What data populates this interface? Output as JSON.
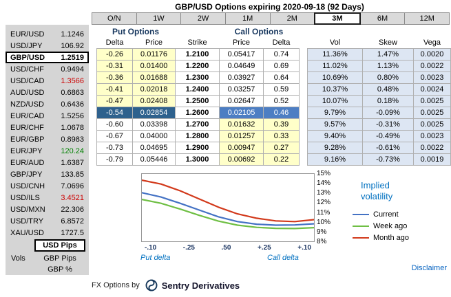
{
  "title": "GBP/USD Options expiring 2020-09-18 (92 Days)",
  "tabs": {
    "items": [
      "O/N",
      "1W",
      "2W",
      "1M",
      "2M",
      "3M",
      "6M",
      "12M"
    ],
    "selected": "3M"
  },
  "sidebar": {
    "pairs": [
      {
        "pair": "EUR/USD",
        "rate": "1.1246",
        "color": "black",
        "selected": false
      },
      {
        "pair": "USD/JPY",
        "rate": "106.92",
        "color": "black",
        "selected": false
      },
      {
        "pair": "GBP/USD",
        "rate": "1.2519",
        "color": "black",
        "selected": true
      },
      {
        "pair": "USD/CHF",
        "rate": "0.9494",
        "color": "black",
        "selected": false
      },
      {
        "pair": "USD/CAD",
        "rate": "1.3566",
        "color": "red",
        "selected": false
      },
      {
        "pair": "AUD/USD",
        "rate": "0.6863",
        "color": "black",
        "selected": false
      },
      {
        "pair": "NZD/USD",
        "rate": "0.6436",
        "color": "black",
        "selected": false
      },
      {
        "pair": "EUR/CAD",
        "rate": "1.5256",
        "color": "black",
        "selected": false
      },
      {
        "pair": "EUR/CHF",
        "rate": "1.0678",
        "color": "black",
        "selected": false
      },
      {
        "pair": "EUR/GBP",
        "rate": "0.8983",
        "color": "black",
        "selected": false
      },
      {
        "pair": "EUR/JPY",
        "rate": "120.24",
        "color": "green",
        "selected": false
      },
      {
        "pair": "EUR/AUD",
        "rate": "1.6387",
        "color": "black",
        "selected": false
      },
      {
        "pair": "GBP/JPY",
        "rate": "133.85",
        "color": "black",
        "selected": false
      },
      {
        "pair": "USD/CNH",
        "rate": "7.0696",
        "color": "black",
        "selected": false
      },
      {
        "pair": "USD/ILS",
        "rate": "3.4521",
        "color": "red",
        "selected": false
      },
      {
        "pair": "USD/MXN",
        "rate": "22.306",
        "color": "black",
        "selected": false
      },
      {
        "pair": "USD/TRY",
        "rate": "6.8572",
        "color": "black",
        "selected": false
      },
      {
        "pair": "XAU/USD",
        "rate": "1727.5",
        "color": "black",
        "selected": false
      }
    ],
    "footer": {
      "vols_label": "Vols",
      "modes": [
        "USD Pips",
        "GBP Pips",
        "GBP %"
      ],
      "selected_mode": "USD Pips"
    }
  },
  "table": {
    "put_header": "Put Options",
    "call_header": "Call Options",
    "columns": [
      "Delta",
      "Price",
      "Strike",
      "Price",
      "Delta",
      "Vol",
      "Skew",
      "Vega"
    ],
    "rows": [
      {
        "put_delta": "-0.26",
        "put_price": "0.01176",
        "strike": "1.2100",
        "call_price": "0.05417",
        "call_delta": "0.74",
        "vol": "11.36%",
        "skew": "1.47%",
        "vega": "0.0020",
        "atm": false
      },
      {
        "put_delta": "-0.31",
        "put_price": "0.01400",
        "strike": "1.2200",
        "call_price": "0.04649",
        "call_delta": "0.69",
        "vol": "11.02%",
        "skew": "1.13%",
        "vega": "0.0022",
        "atm": false
      },
      {
        "put_delta": "-0.36",
        "put_price": "0.01688",
        "strike": "1.2300",
        "call_price": "0.03927",
        "call_delta": "0.64",
        "vol": "10.69%",
        "skew": "0.80%",
        "vega": "0.0023",
        "atm": false
      },
      {
        "put_delta": "-0.41",
        "put_price": "0.02018",
        "strike": "1.2400",
        "call_price": "0.03257",
        "call_delta": "0.59",
        "vol": "10.37%",
        "skew": "0.48%",
        "vega": "0.0024",
        "atm": false
      },
      {
        "put_delta": "-0.47",
        "put_price": "0.02408",
        "strike": "1.2500",
        "call_price": "0.02647",
        "call_delta": "0.52",
        "vol": "10.07%",
        "skew": "0.18%",
        "vega": "0.0025",
        "atm": false
      },
      {
        "put_delta": "-0.54",
        "put_price": "0.02854",
        "strike": "1.2600",
        "call_price": "0.02105",
        "call_delta": "0.46",
        "vol": "9.79%",
        "skew": "-0.09%",
        "vega": "0.0025",
        "atm": true
      },
      {
        "put_delta": "-0.60",
        "put_price": "0.03398",
        "strike": "1.2700",
        "call_price": "0.01632",
        "call_delta": "0.39",
        "vol": "9.57%",
        "skew": "-0.31%",
        "vega": "0.0025",
        "atm": false
      },
      {
        "put_delta": "-0.67",
        "put_price": "0.04000",
        "strike": "1.2800",
        "call_price": "0.01257",
        "call_delta": "0.33",
        "vol": "9.40%",
        "skew": "-0.49%",
        "vega": "0.0023",
        "atm": false
      },
      {
        "put_delta": "-0.73",
        "put_price": "0.04695",
        "strike": "1.2900",
        "call_price": "0.00947",
        "call_delta": "0.27",
        "vol": "9.28%",
        "skew": "-0.61%",
        "vega": "0.0022",
        "atm": false
      },
      {
        "put_delta": "-0.79",
        "put_price": "0.05446",
        "strike": "1.3000",
        "call_price": "0.00692",
        "call_delta": "0.22",
        "vol": "9.16%",
        "skew": "-0.73%",
        "vega": "0.0019",
        "atm": false
      }
    ]
  },
  "chart_data": {
    "type": "line",
    "title": "Implied volatility",
    "ylim": [
      8,
      15
    ],
    "y_tick_labels": [
      "15%",
      "14%",
      "13%",
      "12%",
      "11%",
      "10%",
      "9%",
      "8%"
    ],
    "x_tick_labels": [
      "-.10",
      "-.25",
      ".50",
      "+.25",
      "+.10"
    ],
    "x_axis_left_label": "Put delta",
    "x_axis_right_label": "Call delta",
    "legend_position": "right",
    "grid": false,
    "series": [
      {
        "name": "Current",
        "color": "#4472c4",
        "values": [
          13.05,
          12.6,
          11.95,
          11.25,
          10.55,
          10.05,
          9.78,
          9.68,
          9.7,
          9.82
        ]
      },
      {
        "name": "Week ago",
        "color": "#6fbf44",
        "values": [
          12.35,
          11.95,
          11.35,
          10.7,
          10.1,
          9.68,
          9.45,
          9.35,
          9.33,
          9.42
        ]
      },
      {
        "name": "Month ago",
        "color": "#d2391b",
        "values": [
          14.35,
          13.95,
          13.25,
          12.4,
          11.55,
          10.85,
          10.4,
          10.12,
          10.05,
          10.25
        ]
      }
    ]
  },
  "footer": {
    "fx_options_by": "FX Options by",
    "brand": "Sentry Derivatives",
    "disclaimer": "Disclaimer"
  },
  "colors": {
    "yellow_cell": "#ffffc9",
    "atm_put": "#2e618d",
    "atm_call": "#4d7ec3",
    "vol_cell": "#dde6f3",
    "accent_blue": "#0070c0",
    "quote_red": "#cc0000",
    "quote_green": "#008000"
  }
}
